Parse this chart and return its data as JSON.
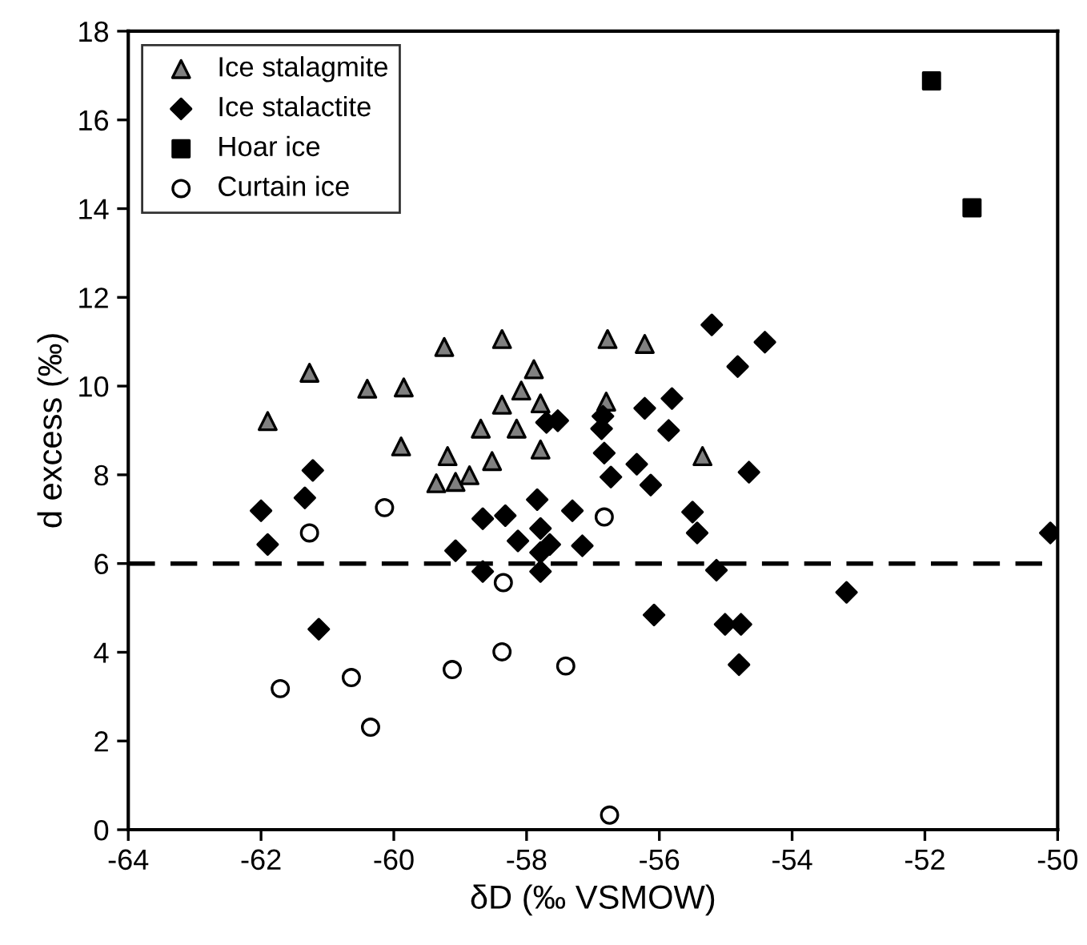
{
  "chart_data": {
    "type": "scatter",
    "xlabel": "δD (‰ VSMOW)",
    "ylabel": "d excess (‰)",
    "xlim": [
      -64,
      -50
    ],
    "xticks": [
      -64,
      -62,
      -60,
      -58,
      -56,
      -54,
      -52,
      -50
    ],
    "ylim": [
      0,
      18
    ],
    "yticks": [
      0,
      2,
      4,
      6,
      8,
      10,
      12,
      14,
      16,
      18
    ],
    "grid": false,
    "legend": "top left",
    "ref_lines": [
      {
        "axis": "y",
        "value": 6,
        "label": null,
        "color": "#000000",
        "line_style": "dashed"
      }
    ],
    "series": [
      {
        "name": "Ice stalagmite",
        "color": "#808080",
        "marker": "triangle",
        "x": [
          -61.27,
          -61.9,
          -60.4,
          -59.85,
          -59.24,
          -58.37,
          -57.89,
          -58.08,
          -58.37,
          -58.69,
          -58.15,
          -59.89,
          -59.19,
          -58.52,
          -59.36,
          -59.07,
          -58.86,
          -57.79,
          -57.79,
          -56.78,
          -56.22,
          -56.8,
          -55.35
        ],
        "values": [
          10.3,
          9.21,
          9.94,
          9.97,
          10.88,
          11.06,
          10.38,
          9.9,
          9.58,
          9.04,
          9.04,
          8.64,
          8.42,
          8.31,
          7.81,
          7.84,
          7.99,
          9.61,
          8.57,
          11.06,
          10.95,
          9.65,
          8.42
        ]
      },
      {
        "name": "Ice stalactite",
        "color": "#000000",
        "marker": "diamond",
        "x": [
          -61.22,
          -61.34,
          -62.0,
          -61.9,
          -59.07,
          -58.66,
          -58.66,
          -58.32,
          -58.13,
          -57.84,
          -57.79,
          -57.79,
          -57.79,
          -61.13,
          -55.21,
          -54.41,
          -54.82,
          -57.7,
          -57.53,
          -56.85,
          -56.87,
          -56.22,
          -55.81,
          -55.86,
          -56.83,
          -56.73,
          -56.34,
          -56.13,
          -54.65,
          -57.31,
          -57.65,
          -57.16,
          -55.5,
          -55.43,
          -55.14,
          -56.08,
          -55.01,
          -54.77,
          -54.8,
          -50.11,
          -53.18
        ],
        "values": [
          8.1,
          7.48,
          7.19,
          6.43,
          6.29,
          5.82,
          7.01,
          7.08,
          6.51,
          7.44,
          6.79,
          6.25,
          5.82,
          4.52,
          11.38,
          10.99,
          10.44,
          9.18,
          9.22,
          9.32,
          9.04,
          9.5,
          9.72,
          9.0,
          8.49,
          7.95,
          8.24,
          7.77,
          8.06,
          7.19,
          6.43,
          6.4,
          7.16,
          6.69,
          5.85,
          4.84,
          4.63,
          4.63,
          3.72,
          6.69,
          5.35
        ]
      },
      {
        "name": "Hoar ice",
        "color": "#000000",
        "marker": "square",
        "x": [
          -51.9,
          -51.29
        ],
        "values": [
          16.88,
          14.02
        ]
      },
      {
        "name": "Curtain ice",
        "color": "#ffffff",
        "marker": "circle",
        "x": [
          -61.71,
          -60.64,
          -60.35,
          -59.12,
          -58.37,
          -57.41,
          -56.75,
          -61.27,
          -60.14,
          -58.35,
          -56.83
        ],
        "values": [
          3.18,
          3.43,
          2.31,
          3.61,
          4.01,
          3.69,
          0.33,
          6.69,
          7.26,
          5.57,
          7.05
        ]
      }
    ]
  }
}
